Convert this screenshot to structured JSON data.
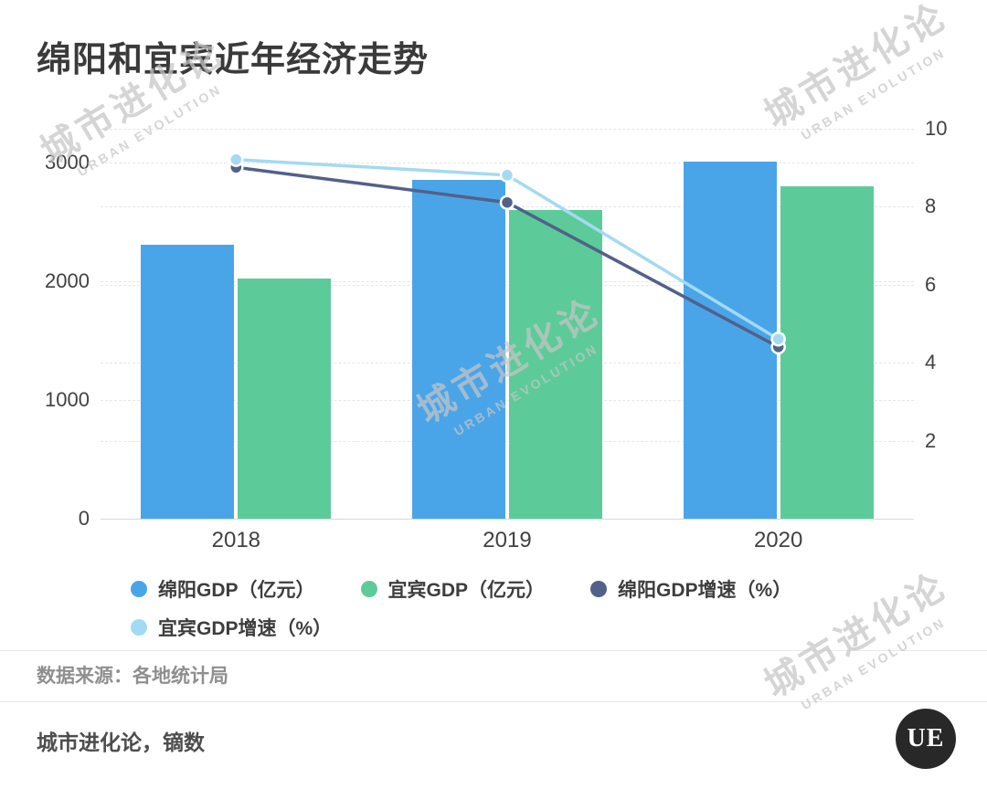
{
  "watermark": {
    "cn": "城市进化论",
    "en": "URBAN EVOLUTION"
  },
  "source_note": "数据来源：各地统计局",
  "footer": {
    "credit": "城市进化论，镝数",
    "logo_text": "UE"
  },
  "colors": {
    "mianyang_gdp": "#4aa5e8",
    "yibin_gdp": "#5dcb99",
    "mianyang_growth": "#516189",
    "yibin_growth": "#a3daf2",
    "grid": "#e6e6e6",
    "axis_text": "#414141"
  },
  "chart_data": {
    "type": "bar+line combo (dual axis)",
    "title": "绵阳和宜宾近年经济走势",
    "categories": [
      "2018",
      "2019",
      "2020"
    ],
    "bar_series": [
      {
        "name": "绵阳GDP（亿元）",
        "color_key": "mianyang_gdp",
        "axis": "left",
        "values": [
          2304,
          2856,
          3010
        ]
      },
      {
        "name": "宜宾GDP（亿元）",
        "color_key": "yibin_gdp",
        "axis": "left",
        "values": [
          2026,
          2602,
          2802
        ]
      }
    ],
    "line_series": [
      {
        "name": "绵阳GDP增速（%）",
        "color_key": "mianyang_growth",
        "axis": "right",
        "values": [
          9.0,
          8.1,
          4.4
        ]
      },
      {
        "name": "宜宾GDP增速（%）",
        "color_key": "yibin_growth",
        "axis": "right",
        "values": [
          9.2,
          8.8,
          4.6
        ]
      }
    ],
    "left_axis": {
      "ticks": [
        0,
        1000,
        2000,
        3000
      ],
      "max": 3000,
      "label": ""
    },
    "right_axis": {
      "ticks": [
        2,
        4,
        6,
        8,
        10
      ],
      "max": 10,
      "label": ""
    },
    "legend_position": "bottom",
    "grid": true
  }
}
